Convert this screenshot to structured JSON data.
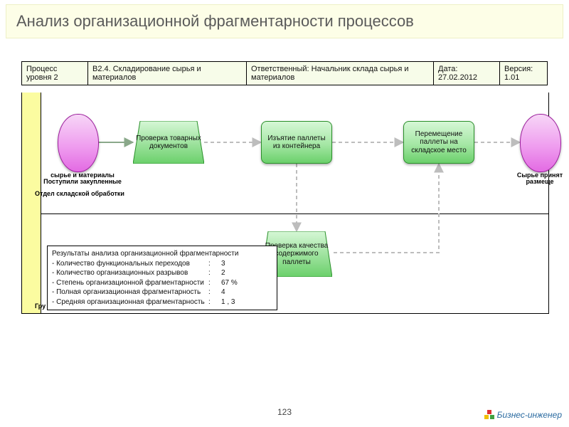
{
  "title": "Анализ организационной фрагментарности процессов",
  "header": {
    "c1_label": "Процесс уровня 2",
    "c2_value": "B2.4.  Складирование сырья и материалов",
    "c3_value": "Ответственный: Начальник склада сырья и материалов",
    "c4_label": "Дата:",
    "c4_value": "27.02.2012",
    "c5_label": "Версия:",
    "c5_value": "1.01",
    "bg": "#f7fce9"
  },
  "lane_band_color": "#fbfca0",
  "lane1_caption": "Отдел складской обработки",
  "lane2_caption": "Гру",
  "nodes": {
    "start": {
      "caption": "сырье и материалы\nПоступили закупленные"
    },
    "n1": {
      "label": "Проверка товарных документов"
    },
    "n2": {
      "label": "Изъятие паллеты из контейнера"
    },
    "n3": {
      "label": "Перемещение паллеты на складское место"
    },
    "n4": {
      "label": "Проверка качества содержимого паллеты"
    },
    "end": {
      "caption": "Сырье принят\nразмеще"
    }
  },
  "palette": {
    "terminator_border": "#9c1e9c",
    "terminator_fill_top": "#f7d6f7",
    "terminator_fill_bot": "#e36be3",
    "task_border": "#2a8f2a",
    "task_fill_top": "#d6f7d6",
    "task_fill_bot": "#6bd06b",
    "arrow": "#8aa88a",
    "arrow_dash": "#bdbdbd"
  },
  "results": {
    "header": "Результаты анализа организационной фрагментарности",
    "rows": [
      {
        "label": "- Количество функциональных переходов",
        "value": "3"
      },
      {
        "label": "- Количество организационных разрывов",
        "value": "2"
      },
      {
        "label": "- Степень организационной фрагментарности",
        "value": "67 %"
      },
      {
        "label": "- Полная организационная фрагментарность",
        "value": "4"
      },
      {
        "label": "- Средняя организационная фрагментарность",
        "value": "1 , 3"
      }
    ]
  },
  "page_number": "123",
  "brand": "Бизнес-инженер"
}
